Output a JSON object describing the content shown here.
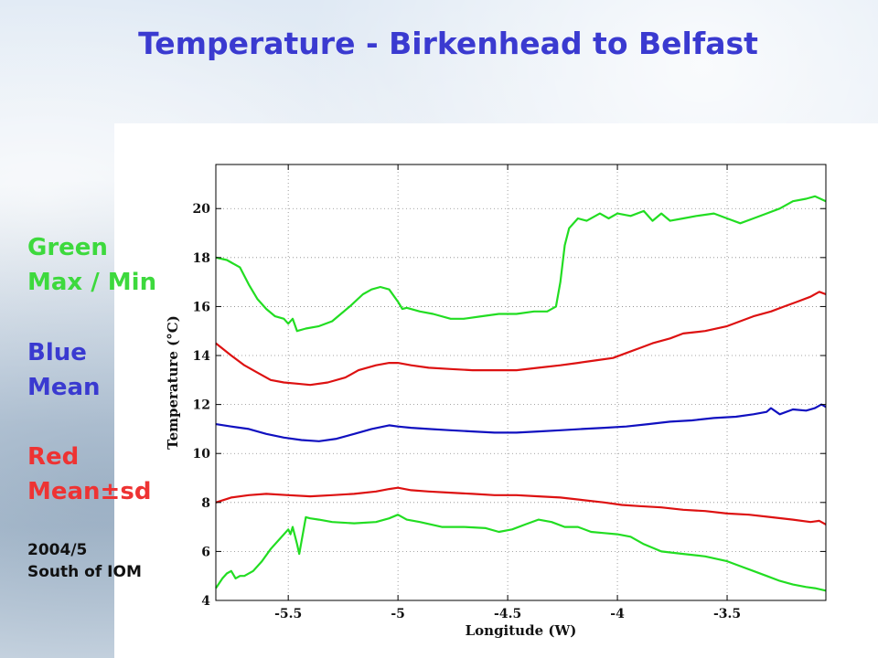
{
  "slide": {
    "title": "Temperature - Birkenhead to Belfast"
  },
  "legend": {
    "green_1": "Green",
    "green_2": "Max / Min",
    "blue_1": "Blue",
    "blue_2": "Mean",
    "red_1": "Red",
    "red_2": "Mean±sd",
    "note_1": "2004/5",
    "note_2": "South of IOM"
  },
  "colors": {
    "title": "#3a3ad0",
    "green": "#22dd22",
    "blue": "#1010c0",
    "red": "#dd1111"
  },
  "chart_data": {
    "type": "line",
    "xlabel": "Longitude (W)",
    "ylabel": "Temperature (°C)",
    "xlim": [
      -5.83,
      -3.05
    ],
    "ylim": [
      4,
      21.8
    ],
    "xticks": [
      -5.5,
      -5,
      -4.5,
      -4,
      -3.5
    ],
    "yticks": [
      4,
      6,
      8,
      10,
      12,
      14,
      16,
      18,
      20
    ],
    "grid": true,
    "series": [
      {
        "name": "Max",
        "color": "#22dd22",
        "x": [
          -5.83,
          -5.78,
          -5.72,
          -5.68,
          -5.64,
          -5.6,
          -5.56,
          -5.52,
          -5.5,
          -5.48,
          -5.46,
          -5.42,
          -5.36,
          -5.3,
          -5.22,
          -5.16,
          -5.12,
          -5.08,
          -5.04,
          -5.0,
          -4.98,
          -4.96,
          -4.9,
          -4.84,
          -4.76,
          -4.7,
          -4.62,
          -4.54,
          -4.46,
          -4.38,
          -4.32,
          -4.28,
          -4.26,
          -4.24,
          -4.22,
          -4.18,
          -4.14,
          -4.08,
          -4.04,
          -4.0,
          -3.94,
          -3.88,
          -3.84,
          -3.8,
          -3.76,
          -3.7,
          -3.64,
          -3.56,
          -3.5,
          -3.44,
          -3.38,
          -3.32,
          -3.26,
          -3.2,
          -3.14,
          -3.1,
          -3.05
        ],
        "y": [
          18.0,
          17.9,
          17.6,
          16.9,
          16.3,
          15.9,
          15.6,
          15.5,
          15.3,
          15.5,
          15.0,
          15.1,
          15.2,
          15.4,
          16.0,
          16.5,
          16.7,
          16.8,
          16.7,
          16.2,
          15.9,
          15.95,
          15.8,
          15.7,
          15.5,
          15.5,
          15.6,
          15.7,
          15.7,
          15.8,
          15.8,
          16.0,
          17.0,
          18.5,
          19.2,
          19.6,
          19.5,
          19.8,
          19.6,
          19.8,
          19.7,
          19.9,
          19.5,
          19.8,
          19.5,
          19.6,
          19.7,
          19.8,
          19.6,
          19.4,
          19.6,
          19.8,
          20.0,
          20.3,
          20.4,
          20.5,
          20.3
        ]
      },
      {
        "name": "Mean+sd",
        "color": "#dd1111",
        "x": [
          -5.83,
          -5.76,
          -5.7,
          -5.64,
          -5.58,
          -5.52,
          -5.46,
          -5.4,
          -5.32,
          -5.24,
          -5.18,
          -5.1,
          -5.04,
          -5.0,
          -4.94,
          -4.86,
          -4.76,
          -4.66,
          -4.56,
          -4.46,
          -4.36,
          -4.26,
          -4.18,
          -4.1,
          -4.02,
          -3.96,
          -3.9,
          -3.84,
          -3.76,
          -3.7,
          -3.6,
          -3.5,
          -3.44,
          -3.38,
          -3.3,
          -3.24,
          -3.18,
          -3.12,
          -3.08,
          -3.05
        ],
        "y": [
          14.5,
          14.0,
          13.6,
          13.3,
          13.0,
          12.9,
          12.85,
          12.8,
          12.9,
          13.1,
          13.4,
          13.6,
          13.7,
          13.7,
          13.6,
          13.5,
          13.45,
          13.4,
          13.4,
          13.4,
          13.5,
          13.6,
          13.7,
          13.8,
          13.9,
          14.1,
          14.3,
          14.5,
          14.7,
          14.9,
          15.0,
          15.2,
          15.4,
          15.6,
          15.8,
          16.0,
          16.2,
          16.4,
          16.6,
          16.5
        ]
      },
      {
        "name": "Mean",
        "color": "#1010c0",
        "x": [
          -5.83,
          -5.76,
          -5.68,
          -5.6,
          -5.52,
          -5.44,
          -5.36,
          -5.28,
          -5.2,
          -5.12,
          -5.04,
          -5.0,
          -4.94,
          -4.86,
          -4.76,
          -4.66,
          -4.56,
          -4.46,
          -4.36,
          -4.26,
          -4.16,
          -4.06,
          -3.96,
          -3.86,
          -3.76,
          -3.66,
          -3.56,
          -3.46,
          -3.38,
          -3.32,
          -3.3,
          -3.26,
          -3.2,
          -3.14,
          -3.1,
          -3.07,
          -3.05
        ],
        "y": [
          11.2,
          11.1,
          11.0,
          10.8,
          10.65,
          10.55,
          10.5,
          10.6,
          10.8,
          11.0,
          11.15,
          11.1,
          11.05,
          11.0,
          10.95,
          10.9,
          10.85,
          10.85,
          10.9,
          10.95,
          11.0,
          11.05,
          11.1,
          11.2,
          11.3,
          11.35,
          11.45,
          11.5,
          11.6,
          11.7,
          11.85,
          11.6,
          11.8,
          11.75,
          11.85,
          12.0,
          11.9
        ]
      },
      {
        "name": "Mean-sd",
        "color": "#dd1111",
        "x": [
          -5.83,
          -5.76,
          -5.68,
          -5.6,
          -5.5,
          -5.4,
          -5.3,
          -5.2,
          -5.1,
          -5.04,
          -5.0,
          -4.94,
          -4.86,
          -4.76,
          -4.66,
          -4.56,
          -4.46,
          -4.36,
          -4.26,
          -4.16,
          -4.06,
          -3.98,
          -3.9,
          -3.8,
          -3.7,
          -3.6,
          -3.5,
          -3.4,
          -3.3,
          -3.2,
          -3.12,
          -3.08,
          -3.05
        ],
        "y": [
          8.0,
          8.2,
          8.3,
          8.35,
          8.3,
          8.25,
          8.3,
          8.35,
          8.45,
          8.55,
          8.6,
          8.5,
          8.45,
          8.4,
          8.35,
          8.3,
          8.3,
          8.25,
          8.2,
          8.1,
          8.0,
          7.9,
          7.85,
          7.8,
          7.7,
          7.65,
          7.55,
          7.5,
          7.4,
          7.3,
          7.2,
          7.25,
          7.1
        ]
      },
      {
        "name": "Min",
        "color": "#22dd22",
        "x": [
          -5.83,
          -5.8,
          -5.78,
          -5.76,
          -5.74,
          -5.72,
          -5.7,
          -5.66,
          -5.62,
          -5.58,
          -5.54,
          -5.5,
          -5.49,
          -5.48,
          -5.46,
          -5.45,
          -5.44,
          -5.42,
          -5.4,
          -5.36,
          -5.3,
          -5.2,
          -5.1,
          -5.04,
          -5.0,
          -4.96,
          -4.9,
          -4.8,
          -4.7,
          -4.6,
          -4.54,
          -4.48,
          -4.42,
          -4.36,
          -4.3,
          -4.24,
          -4.18,
          -4.12,
          -4.06,
          -4.0,
          -3.94,
          -3.88,
          -3.8,
          -3.7,
          -3.6,
          -3.5,
          -3.44,
          -3.38,
          -3.32,
          -3.26,
          -3.2,
          -3.14,
          -3.1,
          -3.05
        ],
        "y": [
          4.5,
          4.9,
          5.1,
          5.2,
          4.9,
          5.0,
          5.0,
          5.2,
          5.6,
          6.1,
          6.5,
          6.9,
          6.7,
          7.0,
          6.3,
          5.9,
          6.4,
          7.4,
          7.35,
          7.3,
          7.2,
          7.15,
          7.2,
          7.35,
          7.5,
          7.3,
          7.2,
          7.0,
          7.0,
          6.95,
          6.8,
          6.9,
          7.1,
          7.3,
          7.2,
          7.0,
          7.0,
          6.8,
          6.75,
          6.7,
          6.6,
          6.3,
          6.0,
          5.9,
          5.8,
          5.6,
          5.4,
          5.2,
          5.0,
          4.8,
          4.65,
          4.55,
          4.5,
          4.4
        ]
      }
    ]
  }
}
